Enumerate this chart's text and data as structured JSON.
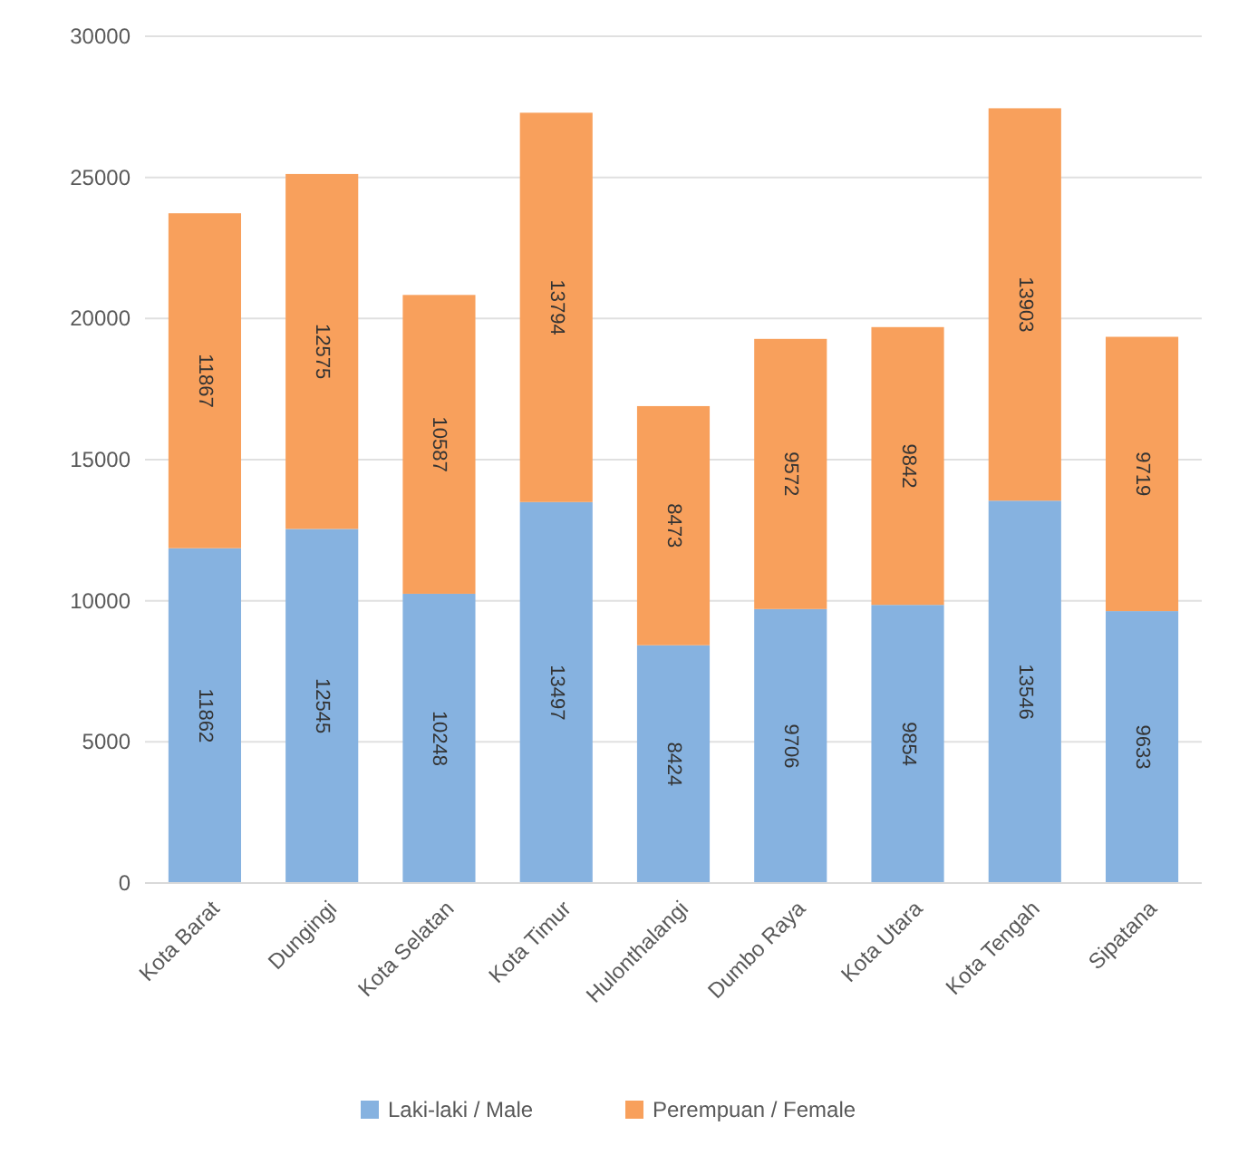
{
  "chart_data": {
    "type": "bar",
    "stacked": true,
    "categories": [
      "Kota Barat",
      "Dungingi",
      "Kota Selatan",
      "Kota Timur",
      "Hulonthalangi",
      "Dumbo Raya",
      "Kota Utara",
      "Kota Tengah",
      "Sipatana"
    ],
    "series": [
      {
        "name": "Laki-laki / Male",
        "color": "#86b2e0",
        "values": [
          11862,
          12545,
          10248,
          13497,
          8424,
          9706,
          9854,
          13546,
          9633
        ]
      },
      {
        "name": "Perempuan / Female",
        "color": "#f8a05c",
        "values": [
          11867,
          12575,
          10587,
          13794,
          8473,
          9572,
          9842,
          13903,
          9719
        ]
      }
    ],
    "ylim": [
      0,
      30000
    ],
    "yticks": [
      0,
      5000,
      10000,
      15000,
      20000,
      25000,
      30000
    ],
    "grid": "y",
    "legend": "bottom",
    "data_labels": true
  }
}
